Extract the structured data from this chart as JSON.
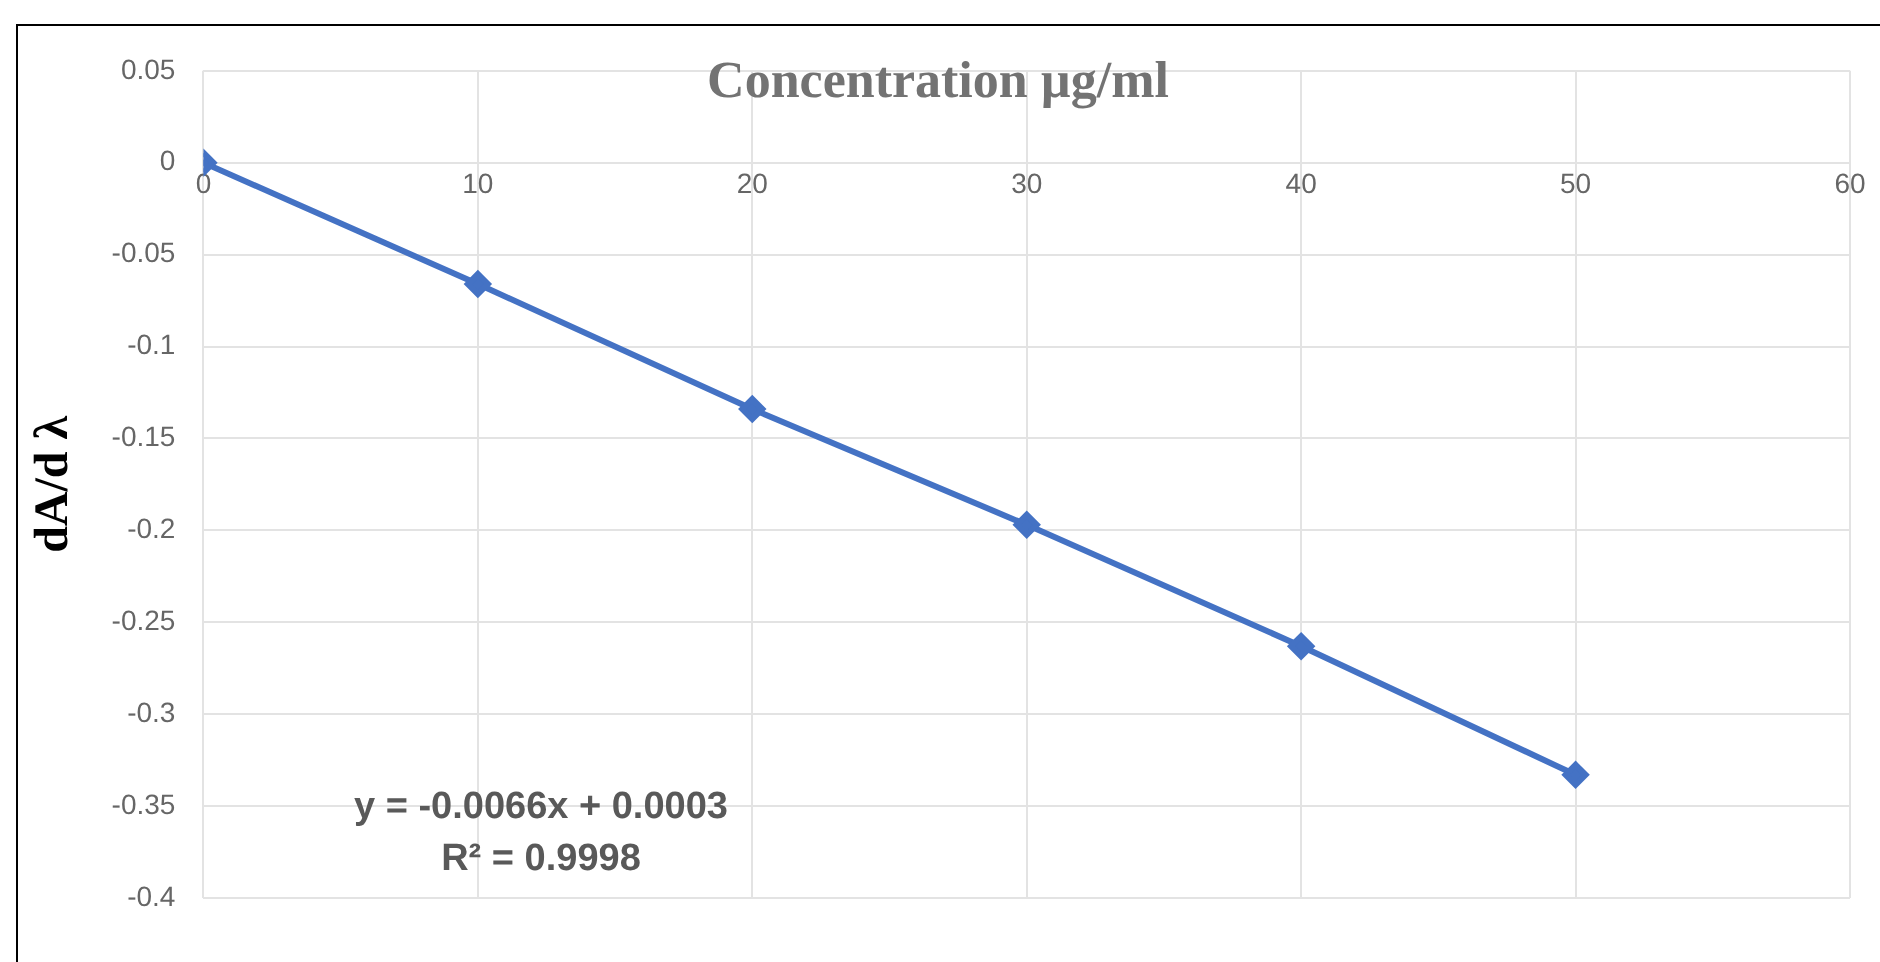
{
  "chart_data": {
    "type": "line",
    "xlabel": "Concentration µg/ml",
    "ylabel": "dA/d λ",
    "x": [
      0,
      10,
      20,
      30,
      40,
      50
    ],
    "series": [
      {
        "color": "#4472c4",
        "values": [
          0,
          -0.066,
          -0.134,
          -0.197,
          -0.263,
          -0.333
        ]
      }
    ],
    "xlim": [
      0,
      60
    ],
    "xticks": [
      0,
      10,
      20,
      30,
      40,
      50,
      60
    ],
    "ylim": [
      -0.4,
      0.05
    ],
    "yticks": [
      -0.4,
      -0.35,
      -0.3,
      -0.25,
      -0.2,
      -0.15,
      -0.1,
      -0.05,
      0,
      0.05
    ],
    "grid": true,
    "legend": false,
    "marker": "diamond",
    "line_style": "solid",
    "annotations": [
      "y = -0.0066x + 0.0003",
      "R² = 0.9998"
    ]
  }
}
